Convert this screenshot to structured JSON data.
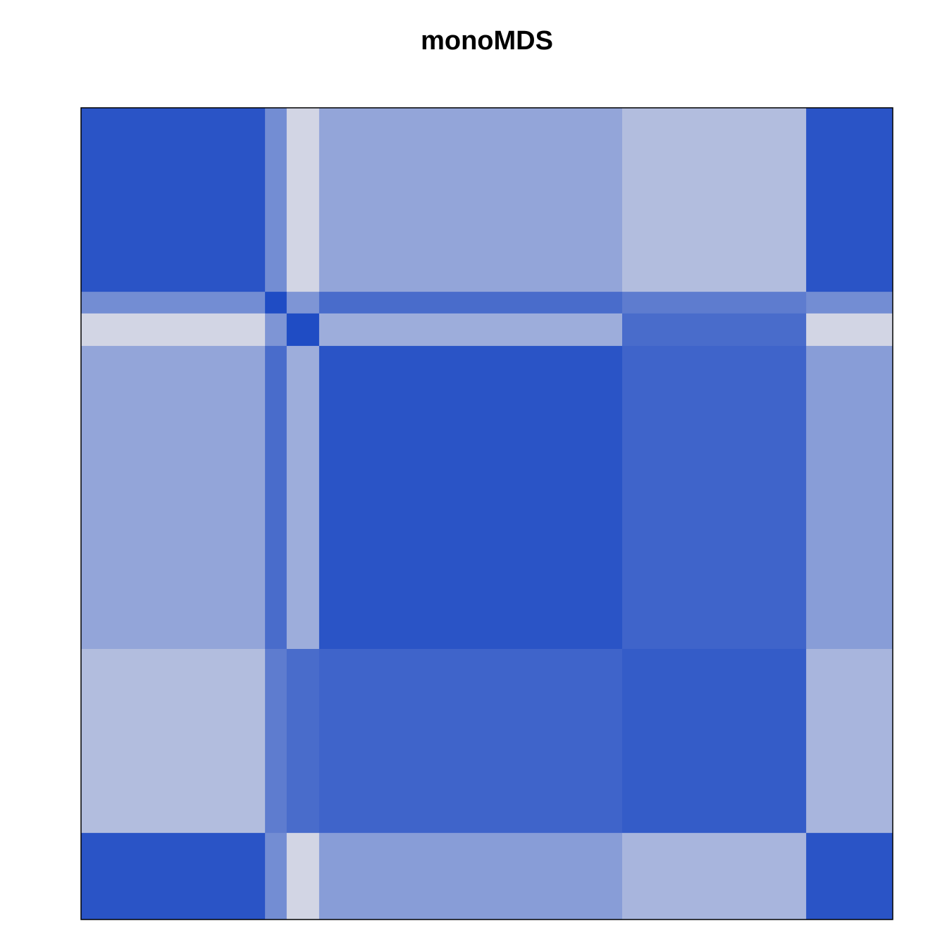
{
  "chart_data": {
    "type": "heatmap",
    "title": "monoMDS",
    "group_sizes": [
      34,
      4,
      6,
      56,
      34,
      16
    ],
    "values": [
      [
        0.85,
        0.5,
        0.05,
        0.35,
        0.2,
        0.85
      ],
      [
        0.5,
        0.9,
        0.45,
        0.7,
        0.6,
        0.5
      ],
      [
        0.05,
        0.45,
        0.9,
        0.3,
        0.7,
        0.05
      ],
      [
        0.35,
        0.7,
        0.3,
        0.85,
        0.75,
        0.4
      ],
      [
        0.2,
        0.6,
        0.7,
        0.75,
        0.8,
        0.25
      ],
      [
        0.85,
        0.5,
        0.05,
        0.4,
        0.25,
        0.85
      ]
    ],
    "zlim": [
      0,
      1
    ],
    "colors": [
      "#dcdde6",
      "#0a3cc0"
    ]
  }
}
